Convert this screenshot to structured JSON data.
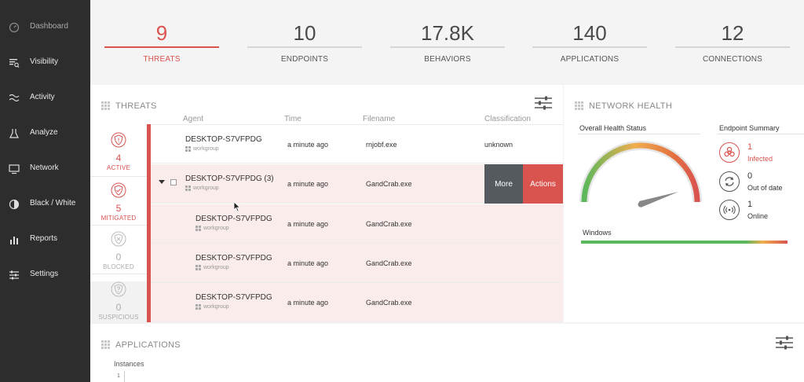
{
  "sidebar": {
    "items": [
      {
        "label": "Dashboard",
        "icon": "gauge-icon"
      },
      {
        "label": "Visibility",
        "icon": "visibility-icon"
      },
      {
        "label": "Activity",
        "icon": "activity-icon"
      },
      {
        "label": "Analyze",
        "icon": "analyze-icon"
      },
      {
        "label": "Network",
        "icon": "network-icon"
      },
      {
        "label": "Black / White",
        "icon": "black-white-icon"
      },
      {
        "label": "Reports",
        "icon": "reports-icon"
      },
      {
        "label": "Settings",
        "icon": "settings-icon"
      }
    ]
  },
  "stats": [
    {
      "value": "9",
      "label": "THREATS"
    },
    {
      "value": "10",
      "label": "ENDPOINTS"
    },
    {
      "value": "17.8K",
      "label": "BEHAVIORS"
    },
    {
      "value": "140",
      "label": "APPLICATIONS"
    },
    {
      "value": "12",
      "label": "CONNECTIONS"
    }
  ],
  "threats": {
    "title": "THREATS",
    "columns": {
      "agent": "Agent",
      "time": "Time",
      "filename": "Filename",
      "classification": "Classification"
    },
    "categories": [
      {
        "count": "4",
        "label": "ACTIVE"
      },
      {
        "count": "5",
        "label": "MITIGATED"
      },
      {
        "count": "0",
        "label": "BLOCKED"
      },
      {
        "count": "0",
        "label": "SUSPICIOUS"
      }
    ],
    "rows": [
      {
        "agent": "DESKTOP-S7VFPDG",
        "group": "workgroup",
        "time": "a minute ago",
        "filename": "rnjobf.exe",
        "classification": "unknown"
      },
      {
        "agent": "DESKTOP-S7VFPDG (3)",
        "group": "workgroup",
        "time": "a minute ago",
        "filename": "GandCrab.exe",
        "more": "More",
        "actions": "Actions"
      },
      {
        "agent": "DESKTOP-S7VFPDG",
        "group": "workgroup",
        "time": "a minute ago",
        "filename": "GandCrab.exe"
      },
      {
        "agent": "DESKTOP-S7VFPDG",
        "group": "workgroup",
        "time": "a minute ago",
        "filename": "GandCrab.exe"
      },
      {
        "agent": "DESKTOP-S7VFPDG",
        "group": "workgroup",
        "time": "a minute ago",
        "filename": "GandCrab.exe"
      }
    ]
  },
  "health": {
    "title": "NETWORK HEALTH",
    "overall_label": "Overall Health Status",
    "summary_label": "Endpoint Summary",
    "os_label": "Windows",
    "endpoints": [
      {
        "count": "1",
        "label": "Infected",
        "icon": "biohazard-icon"
      },
      {
        "count": "0",
        "label": "Out of date",
        "icon": "refresh-icon"
      },
      {
        "count": "1",
        "label": "Online",
        "icon": "signal-icon"
      }
    ]
  },
  "applications": {
    "title": "APPLICATIONS",
    "ylabel": "Instances",
    "tick": "1"
  },
  "colors": {
    "accent": "#d9534f",
    "sidebar": "#2d2d2d",
    "good": "#5cb85c",
    "warn": "#f0ad4e"
  }
}
